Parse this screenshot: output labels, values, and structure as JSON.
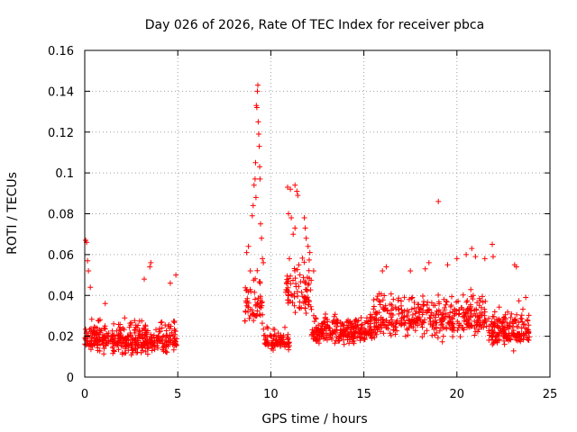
{
  "chart_data": {
    "type": "scatter",
    "title": "Day 026 of 2026, Rate Of TEC Index for receiver pbca",
    "xlabel": "GPS time / hours",
    "ylabel": "ROTI / TECUs",
    "xlim": [
      0,
      25
    ],
    "ylim": [
      0,
      0.16
    ],
    "xticks": [
      0,
      5,
      10,
      15,
      20,
      25
    ],
    "xtick_labels": [
      "0",
      "5",
      "10",
      "15",
      "20",
      "25"
    ],
    "yticks": [
      0,
      0.02,
      0.04,
      0.06,
      0.08,
      0.1,
      0.12,
      0.14,
      0.16
    ],
    "ytick_labels": [
      "0",
      "0.02",
      "0.04",
      "0.06",
      "0.08",
      "0.1",
      "0.12",
      "0.14",
      "0.16"
    ],
    "grid": true,
    "marker": "+",
    "color": "#ff0000",
    "clusters": [
      {
        "x_start": 0.0,
        "x_end": 4.95,
        "y_base": 0.018,
        "y_spread": 0.009,
        "count": 420
      },
      {
        "x_start": 8.6,
        "x_end": 9.6,
        "y_base": 0.035,
        "y_spread": 0.015,
        "count": 60
      },
      {
        "x_start": 9.6,
        "x_end": 11.0,
        "y_base": 0.017,
        "y_spread": 0.006,
        "count": 90
      },
      {
        "x_start": 10.8,
        "x_end": 12.2,
        "y_base": 0.04,
        "y_spread": 0.015,
        "count": 80
      },
      {
        "x_start": 12.2,
        "x_end": 15.5,
        "y_base": 0.022,
        "y_spread": 0.008,
        "count": 260
      },
      {
        "x_start": 15.5,
        "x_end": 21.6,
        "y_base": 0.028,
        "y_spread": 0.012,
        "count": 420
      },
      {
        "x_start": 21.7,
        "x_end": 23.9,
        "y_base": 0.022,
        "y_spread": 0.01,
        "count": 180
      }
    ],
    "points": [
      {
        "x": 0.05,
        "y": 0.067
      },
      {
        "x": 0.1,
        "y": 0.066
      },
      {
        "x": 0.15,
        "y": 0.057
      },
      {
        "x": 0.2,
        "y": 0.052
      },
      {
        "x": 0.3,
        "y": 0.044
      },
      {
        "x": 1.1,
        "y": 0.036
      },
      {
        "x": 3.2,
        "y": 0.048
      },
      {
        "x": 3.5,
        "y": 0.054
      },
      {
        "x": 3.55,
        "y": 0.056
      },
      {
        "x": 4.6,
        "y": 0.046
      },
      {
        "x": 4.9,
        "y": 0.05
      },
      {
        "x": 8.7,
        "y": 0.061
      },
      {
        "x": 8.8,
        "y": 0.064
      },
      {
        "x": 8.9,
        "y": 0.052
      },
      {
        "x": 9.0,
        "y": 0.079
      },
      {
        "x": 9.05,
        "y": 0.084
      },
      {
        "x": 9.1,
        "y": 0.094
      },
      {
        "x": 9.15,
        "y": 0.097
      },
      {
        "x": 9.18,
        "y": 0.105
      },
      {
        "x": 9.2,
        "y": 0.088
      },
      {
        "x": 9.22,
        "y": 0.133
      },
      {
        "x": 9.25,
        "y": 0.132
      },
      {
        "x": 9.28,
        "y": 0.14
      },
      {
        "x": 9.3,
        "y": 0.143
      },
      {
        "x": 9.32,
        "y": 0.125
      },
      {
        "x": 9.35,
        "y": 0.119
      },
      {
        "x": 9.38,
        "y": 0.113
      },
      {
        "x": 9.4,
        "y": 0.103
      },
      {
        "x": 9.42,
        "y": 0.097
      },
      {
        "x": 9.45,
        "y": 0.075
      },
      {
        "x": 9.5,
        "y": 0.068
      },
      {
        "x": 9.55,
        "y": 0.058
      },
      {
        "x": 9.6,
        "y": 0.056
      },
      {
        "x": 10.9,
        "y": 0.093
      },
      {
        "x": 11.05,
        "y": 0.092
      },
      {
        "x": 11.3,
        "y": 0.094
      },
      {
        "x": 11.4,
        "y": 0.091
      },
      {
        "x": 11.45,
        "y": 0.089
      },
      {
        "x": 10.95,
        "y": 0.08
      },
      {
        "x": 11.1,
        "y": 0.078
      },
      {
        "x": 11.2,
        "y": 0.07
      },
      {
        "x": 11.3,
        "y": 0.073
      },
      {
        "x": 11.8,
        "y": 0.078
      },
      {
        "x": 11.85,
        "y": 0.073
      },
      {
        "x": 11.9,
        "y": 0.068
      },
      {
        "x": 12.0,
        "y": 0.064
      },
      {
        "x": 12.1,
        "y": 0.061
      },
      {
        "x": 11.0,
        "y": 0.058
      },
      {
        "x": 11.5,
        "y": 0.055
      },
      {
        "x": 12.3,
        "y": 0.052
      },
      {
        "x": 16.0,
        "y": 0.052
      },
      {
        "x": 16.2,
        "y": 0.054
      },
      {
        "x": 17.5,
        "y": 0.052
      },
      {
        "x": 18.3,
        "y": 0.053
      },
      {
        "x": 18.5,
        "y": 0.056
      },
      {
        "x": 19.0,
        "y": 0.086
      },
      {
        "x": 19.5,
        "y": 0.055
      },
      {
        "x": 20.0,
        "y": 0.058
      },
      {
        "x": 20.5,
        "y": 0.06
      },
      {
        "x": 20.8,
        "y": 0.063
      },
      {
        "x": 21.0,
        "y": 0.059
      },
      {
        "x": 21.5,
        "y": 0.058
      },
      {
        "x": 21.9,
        "y": 0.065
      },
      {
        "x": 21.95,
        "y": 0.059
      },
      {
        "x": 23.1,
        "y": 0.055
      },
      {
        "x": 23.2,
        "y": 0.054
      },
      {
        "x": 23.7,
        "y": 0.039
      }
    ]
  }
}
